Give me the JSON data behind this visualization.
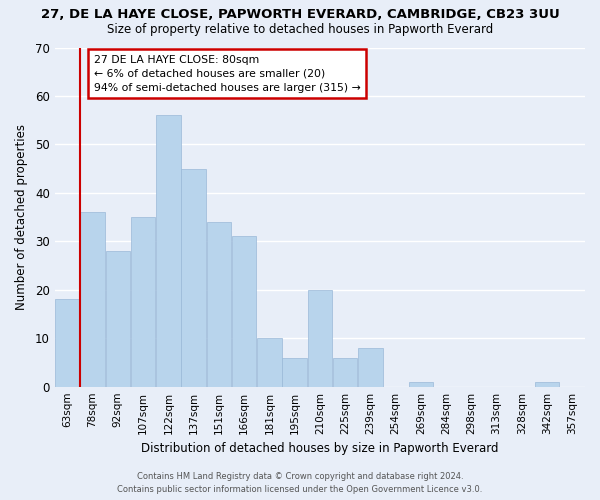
{
  "title": "27, DE LA HAYE CLOSE, PAPWORTH EVERARD, CAMBRIDGE, CB23 3UU",
  "subtitle": "Size of property relative to detached houses in Papworth Everard",
  "xlabel": "Distribution of detached houses by size in Papworth Everard",
  "ylabel": "Number of detached properties",
  "categories": [
    "63sqm",
    "78sqm",
    "92sqm",
    "107sqm",
    "122sqm",
    "137sqm",
    "151sqm",
    "166sqm",
    "181sqm",
    "195sqm",
    "210sqm",
    "225sqm",
    "239sqm",
    "254sqm",
    "269sqm",
    "284sqm",
    "298sqm",
    "313sqm",
    "328sqm",
    "342sqm",
    "357sqm"
  ],
  "values": [
    18,
    36,
    28,
    35,
    56,
    45,
    34,
    31,
    10,
    6,
    20,
    6,
    8,
    0,
    1,
    0,
    0,
    0,
    0,
    1,
    0
  ],
  "bar_color": "#b8d4ec",
  "bar_edge_color": "#9ab8d8",
  "vline_color": "#cc0000",
  "ylim": [
    0,
    70
  ],
  "yticks": [
    0,
    10,
    20,
    30,
    40,
    50,
    60,
    70
  ],
  "annotation_title": "27 DE LA HAYE CLOSE: 80sqm",
  "annotation_line1": "← 6% of detached houses are smaller (20)",
  "annotation_line2": "94% of semi-detached houses are larger (315) →",
  "footer1": "Contains HM Land Registry data © Crown copyright and database right 2024.",
  "footer2": "Contains public sector information licensed under the Open Government Licence v3.0.",
  "background_color": "#e8eef8",
  "grid_color": "white"
}
